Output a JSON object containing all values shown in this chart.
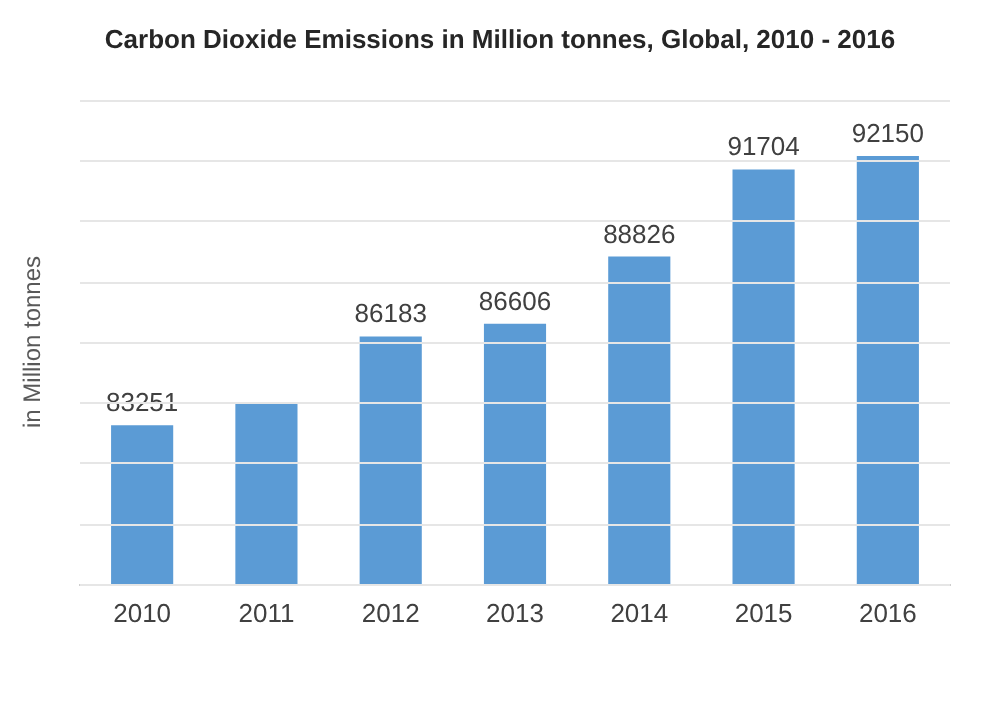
{
  "chart_data": {
    "type": "bar",
    "title": "Carbon Dioxide Emissions in Million tonnes, Global, 2010 - 2016",
    "ylabel": "in Million tonnes",
    "categories": [
      "2010",
      "2011",
      "2012",
      "2013",
      "2014",
      "2015",
      "2016"
    ],
    "values": [
      83251,
      84000,
      86183,
      86606,
      88826,
      91704,
      92150
    ],
    "value_labels": [
      "83251",
      null,
      "86183",
      "86606",
      "88826",
      "91704",
      "92150"
    ],
    "color": "#5b9bd5",
    "ylim": [
      78000,
      94000
    ],
    "yticks": [
      {
        "value": 78000,
        "label": null
      },
      {
        "value": 80000,
        "label": null
      },
      {
        "value": 82000,
        "label": null
      },
      {
        "value": 84000,
        "label": null
      },
      {
        "value": 86000,
        "label": null
      },
      {
        "value": 88000,
        "label": null
      },
      {
        "value": 90000,
        "label": null
      },
      {
        "value": 92000,
        "label": null
      },
      {
        "value": 94000,
        "label": null
      }
    ],
    "tick_labels": "x",
    "grid": "y"
  }
}
